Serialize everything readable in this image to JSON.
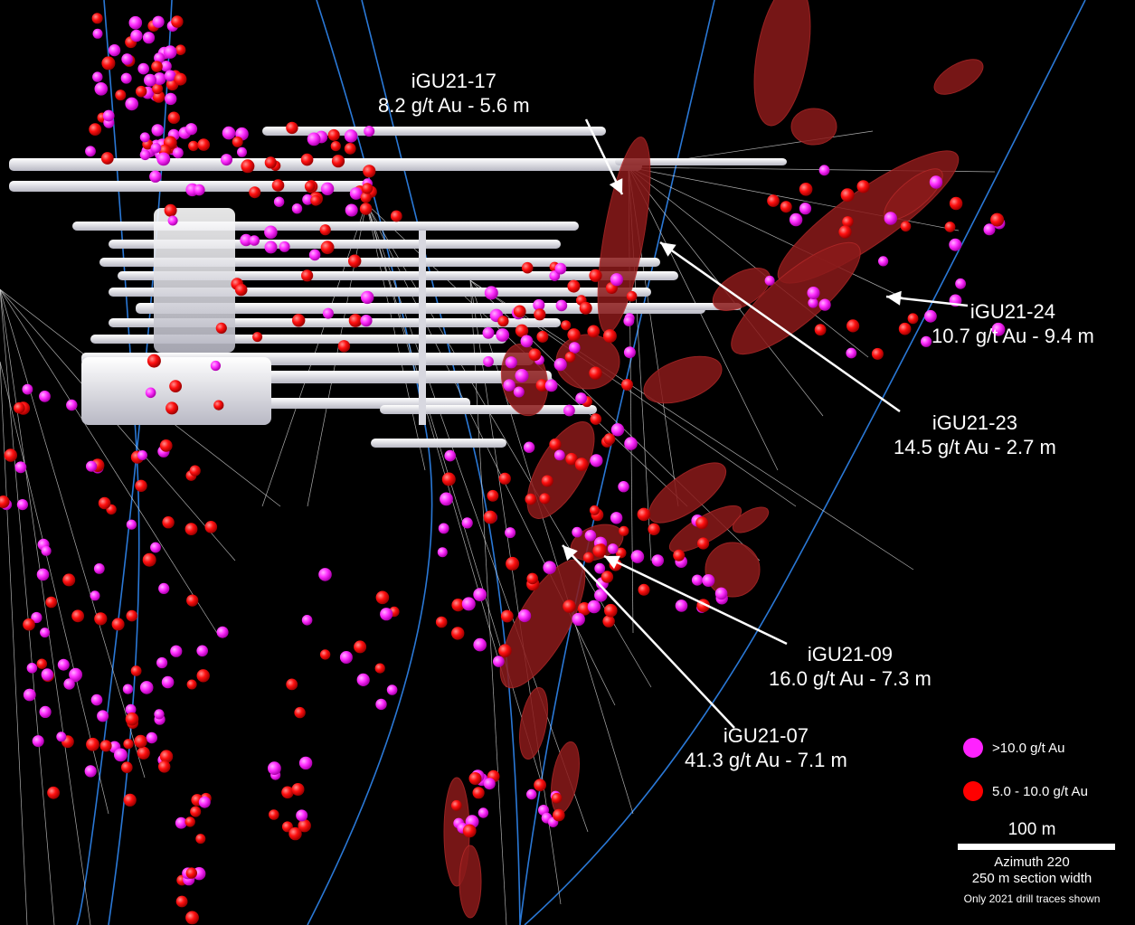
{
  "callouts": [
    {
      "hole": "iGU21-17",
      "grade": "8.2 g/t Au - 5.6 m"
    },
    {
      "hole": "iGU21-24",
      "grade": "10.7 g/t Au - 9.4 m"
    },
    {
      "hole": "iGU21-23",
      "grade": "14.5 g/t Au - 2.7 m"
    },
    {
      "hole": "iGU21-09",
      "grade": "16.0 g/t Au - 7.3 m"
    },
    {
      "hole": "iGU21-07",
      "grade": "41.3 g/t Au - 7.1 m"
    }
  ],
  "legend": {
    "high": {
      "label": ">10.0 g/t Au",
      "color": "#ff22ff"
    },
    "mid": {
      "label": "5.0 - 10.0 g/t Au",
      "color": "#ff0000"
    },
    "scale": "100 m",
    "azimuth": "Azimuth 220",
    "section_width": "250 m section width",
    "note": "Only 2021 drill traces shown"
  },
  "colors": {
    "background": "#000000",
    "workings": "#e6e6ec",
    "zones": "#8b1a1a",
    "grid_lines": "#2a78d6",
    "drill_traces": "#d8d8d8"
  }
}
